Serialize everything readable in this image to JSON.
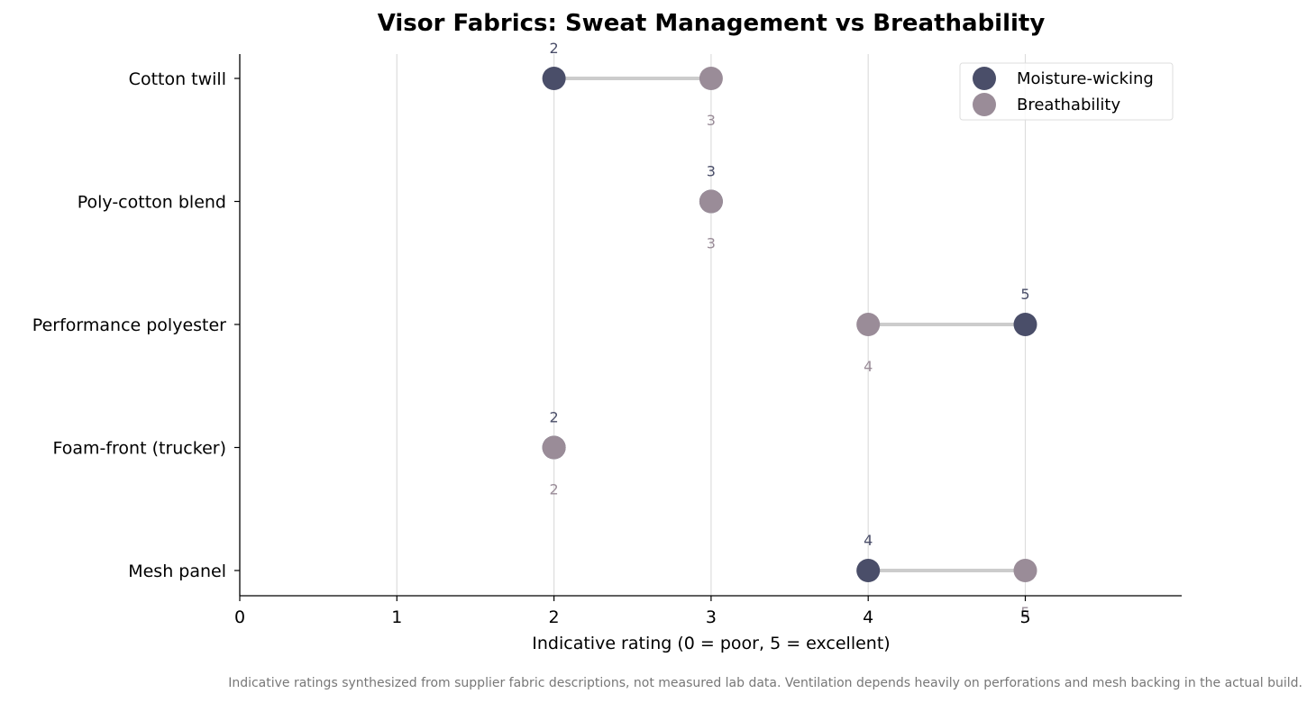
{
  "chart_data": {
    "type": "scatter",
    "title": "Visor Fabrics: Sweat Management vs Breathability",
    "xlabel": "Indicative rating (0 = poor, 5 = excellent)",
    "ylabel": "",
    "xlim": [
      0,
      6
    ],
    "xticks": [
      "0",
      "1",
      "2",
      "3",
      "4",
      "5"
    ],
    "categories": [
      "Cotton twill",
      "Poly-cotton blend",
      "Performance polyester",
      "Foam-front (trucker)",
      "Mesh panel"
    ],
    "series": [
      {
        "name": "Moisture-wicking",
        "color": "#4a4e69",
        "values": [
          2,
          3,
          5,
          2,
          4
        ]
      },
      {
        "name": "Breathability",
        "color": "#9a8c98",
        "values": [
          3,
          3,
          4,
          2,
          5
        ]
      }
    ],
    "connector_color": "#cccccc",
    "grid": "vertical",
    "legend_position": "top-right",
    "footnote": "Indicative ratings synthesized from supplier fabric descriptions, not measured lab data. Ventilation depends heavily on perforations and mesh backing in the actual build."
  }
}
